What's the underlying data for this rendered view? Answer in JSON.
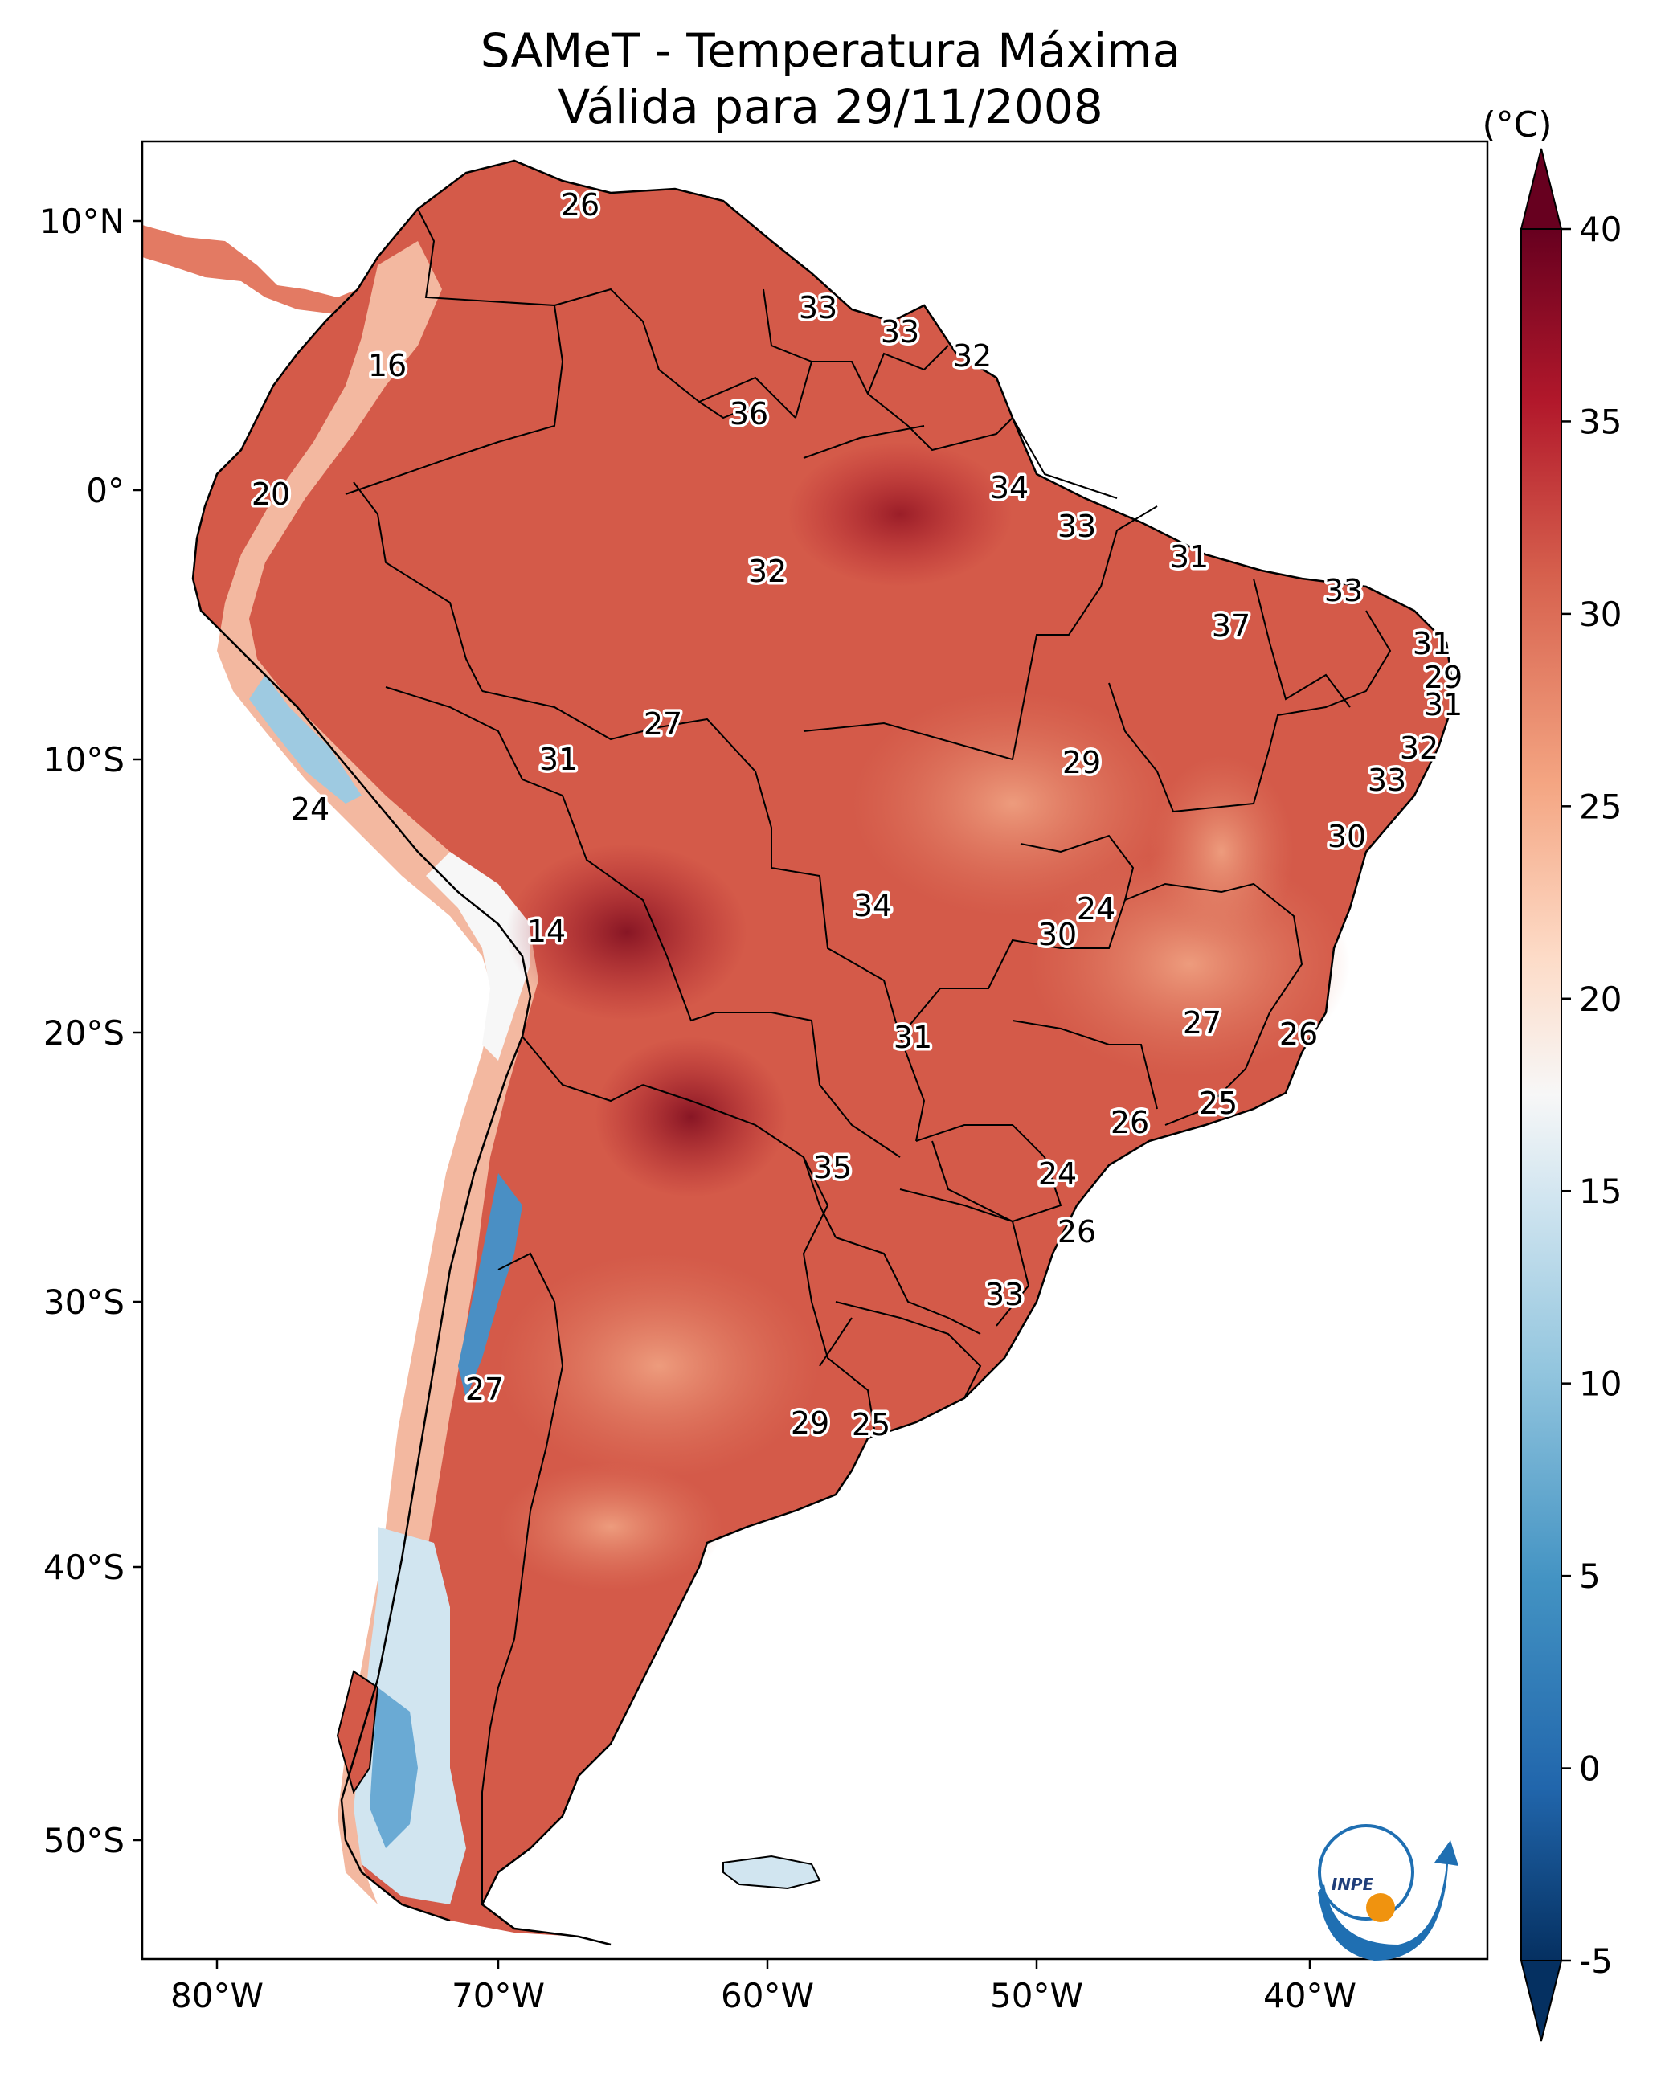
{
  "title_line1": "SAMeT - Temperatura Máxima",
  "title_line2": "Válida para 29/11/2008",
  "colorbar": {
    "unit": "(°C)",
    "ticks": [
      "40",
      "35",
      "30",
      "25",
      "20",
      "15",
      "10",
      "5",
      "0",
      "-5"
    ],
    "range": [
      -5,
      40
    ]
  },
  "axes": {
    "lon_ticks": [
      "80°W",
      "70°W",
      "60°W",
      "50°W",
      "40°W"
    ],
    "lat_ticks": [
      "10°N",
      "0°",
      "10°S",
      "20°S",
      "30°S",
      "40°S",
      "50°S"
    ]
  },
  "logo_text": "INPE",
  "labels": [
    "26",
    "16",
    "33",
    "33",
    "32",
    "36",
    "20",
    "34",
    "33",
    "32",
    "31",
    "33",
    "37",
    "31",
    "29",
    "31",
    "27",
    "31",
    "29",
    "32",
    "33",
    "24",
    "30",
    "34",
    "24",
    "30",
    "14",
    "27",
    "26",
    "31",
    "25",
    "26",
    "35",
    "24",
    "26",
    "33",
    "27",
    "29",
    "25"
  ]
}
